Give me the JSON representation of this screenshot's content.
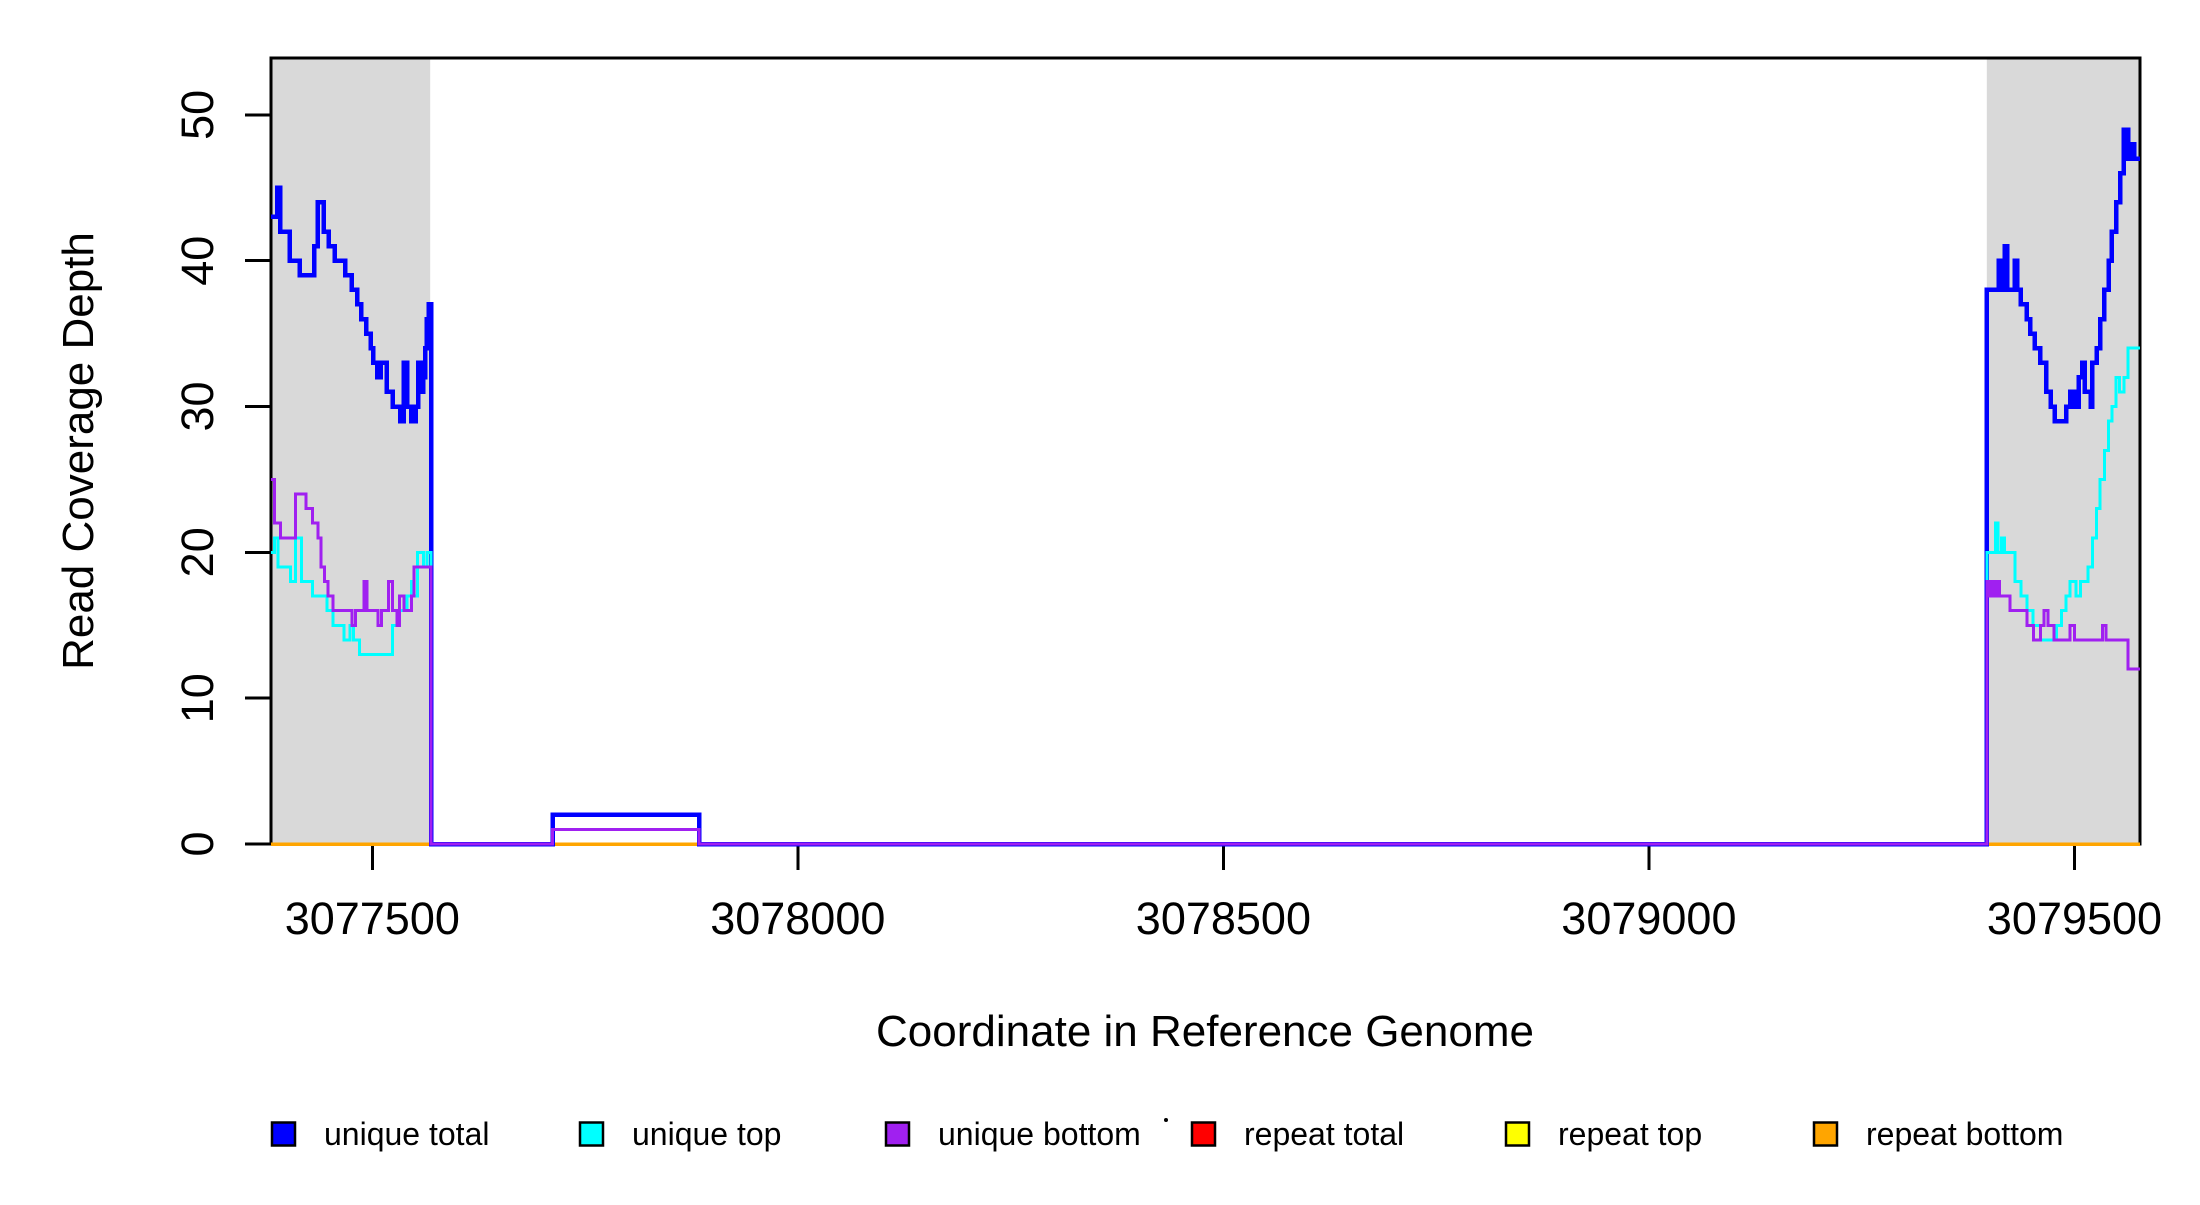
{
  "figure": {
    "background_color": "#FFFFFF",
    "frame_color": "#000000",
    "band_color": "#D9D9D9"
  },
  "chart_data": {
    "type": "line",
    "subtype": "step-coverage",
    "title": "",
    "xlabel": "Coordinate in Reference Genome",
    "ylabel": "Read Coverage Depth",
    "xlim": [
      3077381,
      3079577
    ],
    "ylim": [
      0,
      53.9
    ],
    "grid": false,
    "x_ticks": [
      3077500,
      3078000,
      3078500,
      3079000,
      3079500
    ],
    "x_tick_labels": [
      "3077500",
      "3078000",
      "3078500",
      "3079000",
      "3079500"
    ],
    "y_ticks": [
      0,
      10,
      20,
      30,
      40,
      50
    ],
    "y_tick_labels": [
      "0",
      "10",
      "20",
      "30",
      "40",
      "50"
    ],
    "background_bands": [
      {
        "name": "left-repeat-flank",
        "x0": 3077381,
        "x1": 3077568
      },
      {
        "name": "right-repeat-flank",
        "x0": 3079397,
        "x1": 3079577
      }
    ],
    "legend": {
      "position": "bottom",
      "items": [
        {
          "label": "unique total",
          "color": "#0000FF"
        },
        {
          "label": "unique top",
          "color": "#00FFFF"
        },
        {
          "label": "unique bottom",
          "color": "#A020F0"
        },
        {
          "label": "repeat total",
          "color": "#FF0000"
        },
        {
          "label": "repeat top",
          "color": "#FFFF00"
        },
        {
          "label": "repeat bottom",
          "color": "#FFA500"
        }
      ]
    },
    "series": [
      {
        "name": "repeat total",
        "color": "#FF0000",
        "line_width": 3,
        "points": [
          [
            3077381,
            0
          ],
          [
            3079577,
            0
          ]
        ]
      },
      {
        "name": "repeat top",
        "color": "#FFFF00",
        "line_width": 3,
        "points": [
          [
            3077381,
            0
          ],
          [
            3079577,
            0
          ]
        ]
      },
      {
        "name": "repeat bottom",
        "color": "#FFA500",
        "line_width": 3.5,
        "points": [
          [
            3077381,
            0
          ],
          [
            3079577,
            0
          ]
        ]
      },
      {
        "name": "unique total",
        "color": "#0000FF",
        "line_width": 4.5,
        "points": [
          [
            3077381,
            43
          ],
          [
            3077388,
            45
          ],
          [
            3077392,
            42
          ],
          [
            3077403,
            40
          ],
          [
            3077415,
            39
          ],
          [
            3077432,
            41
          ],
          [
            3077436,
            44
          ],
          [
            3077443,
            42
          ],
          [
            3077449,
            41
          ],
          [
            3077456,
            40
          ],
          [
            3077468,
            39
          ],
          [
            3077476,
            38
          ],
          [
            3077482,
            37
          ],
          [
            3077487,
            36
          ],
          [
            3077493,
            35
          ],
          [
            3077498,
            34
          ],
          [
            3077501,
            33
          ],
          [
            3077506,
            32
          ],
          [
            3077510,
            33
          ],
          [
            3077517,
            31
          ],
          [
            3077524,
            30
          ],
          [
            3077533,
            29
          ],
          [
            3077537,
            33
          ],
          [
            3077541,
            30
          ],
          [
            3077546,
            29
          ],
          [
            3077551,
            30
          ],
          [
            3077554,
            33
          ],
          [
            3077557,
            31
          ],
          [
            3077560,
            32
          ],
          [
            3077562,
            34
          ],
          [
            3077564,
            36
          ],
          [
            3077566,
            37
          ],
          [
            3077569,
            0
          ],
          [
            3077712,
            2
          ],
          [
            3077884,
            0
          ],
          [
            3079397,
            38
          ],
          [
            3079411,
            40
          ],
          [
            3079414,
            38
          ],
          [
            3079418,
            41
          ],
          [
            3079421,
            38
          ],
          [
            3079430,
            40
          ],
          [
            3079433,
            38
          ],
          [
            3079437,
            37
          ],
          [
            3079444,
            36
          ],
          [
            3079448,
            35
          ],
          [
            3079453,
            34
          ],
          [
            3079460,
            33
          ],
          [
            3079467,
            31
          ],
          [
            3079472,
            30
          ],
          [
            3079477,
            29
          ],
          [
            3079490,
            30
          ],
          [
            3079495,
            31
          ],
          [
            3079500,
            30
          ],
          [
            3079505,
            32
          ],
          [
            3079509,
            33
          ],
          [
            3079512,
            31
          ],
          [
            3079519,
            30
          ],
          [
            3079521,
            33
          ],
          [
            3079526,
            34
          ],
          [
            3079530,
            36
          ],
          [
            3079535,
            38
          ],
          [
            3079540,
            40
          ],
          [
            3079544,
            42
          ],
          [
            3079549,
            44
          ],
          [
            3079554,
            46
          ],
          [
            3079558,
            49
          ],
          [
            3079563,
            47
          ],
          [
            3079568,
            48
          ],
          [
            3079570,
            47
          ],
          [
            3079577,
            47
          ]
        ]
      },
      {
        "name": "unique top",
        "color": "#00FFFF",
        "line_width": 3,
        "points": [
          [
            3077381,
            20
          ],
          [
            3077385,
            21
          ],
          [
            3077389,
            19
          ],
          [
            3077404,
            18
          ],
          [
            3077410,
            21
          ],
          [
            3077417,
            18
          ],
          [
            3077430,
            17
          ],
          [
            3077447,
            16
          ],
          [
            3077454,
            15
          ],
          [
            3077467,
            14
          ],
          [
            3077474,
            15
          ],
          [
            3077478,
            14
          ],
          [
            3077485,
            13
          ],
          [
            3077508,
            13
          ],
          [
            3077524,
            15
          ],
          [
            3077532,
            16
          ],
          [
            3077541,
            17
          ],
          [
            3077546,
            18
          ],
          [
            3077549,
            17
          ],
          [
            3077553,
            20
          ],
          [
            3077560,
            19
          ],
          [
            3077564,
            20
          ],
          [
            3077569,
            0
          ],
          [
            3077712,
            1
          ],
          [
            3077884,
            0
          ],
          [
            3079397,
            20
          ],
          [
            3079407,
            22
          ],
          [
            3079410,
            20
          ],
          [
            3079414,
            21
          ],
          [
            3079418,
            20
          ],
          [
            3079430,
            18
          ],
          [
            3079437,
            17
          ],
          [
            3079444,
            16
          ],
          [
            3079451,
            15
          ],
          [
            3079460,
            14
          ],
          [
            3079479,
            15
          ],
          [
            3079485,
            16
          ],
          [
            3079490,
            17
          ],
          [
            3079495,
            18
          ],
          [
            3079502,
            17
          ],
          [
            3079507,
            18
          ],
          [
            3079516,
            19
          ],
          [
            3079521,
            21
          ],
          [
            3079526,
            23
          ],
          [
            3079530,
            25
          ],
          [
            3079535,
            27
          ],
          [
            3079540,
            29
          ],
          [
            3079544,
            30
          ],
          [
            3079549,
            32
          ],
          [
            3079553,
            31
          ],
          [
            3079558,
            32
          ],
          [
            3079563,
            34
          ],
          [
            3079577,
            34
          ]
        ]
      },
      {
        "name": "unique bottom",
        "color": "#A020F0",
        "line_width": 3,
        "points": [
          [
            3077381,
            25
          ],
          [
            3077385,
            22
          ],
          [
            3077392,
            21
          ],
          [
            3077410,
            24
          ],
          [
            3077422,
            23
          ],
          [
            3077430,
            22
          ],
          [
            3077436,
            21
          ],
          [
            3077440,
            19
          ],
          [
            3077444,
            18
          ],
          [
            3077448,
            17
          ],
          [
            3077454,
            16
          ],
          [
            3077476,
            15
          ],
          [
            3077480,
            16
          ],
          [
            3077490,
            18
          ],
          [
            3077494,
            16
          ],
          [
            3077507,
            15
          ],
          [
            3077511,
            16
          ],
          [
            3077519,
            18
          ],
          [
            3077524,
            16
          ],
          [
            3077529,
            15
          ],
          [
            3077532,
            17
          ],
          [
            3077537,
            16
          ],
          [
            3077546,
            17
          ],
          [
            3077549,
            19
          ],
          [
            3077569,
            0
          ],
          [
            3077712,
            1
          ],
          [
            3077884,
            0
          ],
          [
            3079397,
            18
          ],
          [
            3079400,
            17
          ],
          [
            3079403,
            18
          ],
          [
            3079406,
            17
          ],
          [
            3079409,
            18
          ],
          [
            3079412,
            17
          ],
          [
            3079424,
            16
          ],
          [
            3079444,
            15
          ],
          [
            3079452,
            14
          ],
          [
            3079460,
            15
          ],
          [
            3079464,
            16
          ],
          [
            3079469,
            15
          ],
          [
            3079476,
            14
          ],
          [
            3079490,
            14
          ],
          [
            3079495,
            15
          ],
          [
            3079500,
            14
          ],
          [
            3079530,
            14
          ],
          [
            3079533,
            15
          ],
          [
            3079537,
            14
          ],
          [
            3079558,
            14
          ],
          [
            3079563,
            12
          ],
          [
            3079577,
            12
          ]
        ]
      }
    ]
  }
}
